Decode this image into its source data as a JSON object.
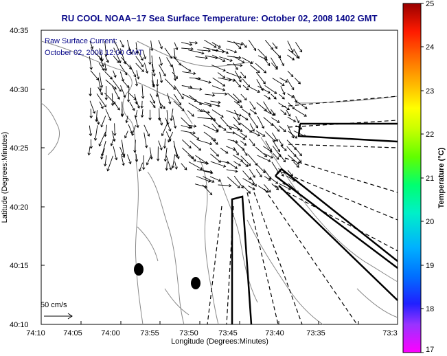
{
  "title": "RU COOL  NOAA−17  Sea Surface Temperature:  October 02, 2008 1402 GMT",
  "annotation": {
    "line1": "Raw Surface Current:",
    "line2": "October 02, 2008 12:00 GMT"
  },
  "scale_label": "50 cm/s",
  "axes": {
    "xlabel": "Longitude (Degrees:Minutes)",
    "ylabel": "Latitude (Degrees:Minutes)",
    "xticks": [
      "74:10",
      "74:05",
      "74:00",
      "73:55",
      "73:50",
      "73:45",
      "73:40",
      "73:35",
      "73:3"
    ],
    "yticks": [
      "40:35",
      "40:30",
      "40:25",
      "40:20",
      "40:15",
      "40:10"
    ]
  },
  "colorbar": {
    "label": "Temperature (°C)",
    "ticks": [
      "25",
      "24",
      "23",
      "22",
      "21",
      "20",
      "19",
      "18",
      "17"
    ],
    "min": 17,
    "max": 25
  },
  "colors": {
    "title": "#0a0a8a",
    "contour": "#888888",
    "arrow": "#000000"
  }
}
